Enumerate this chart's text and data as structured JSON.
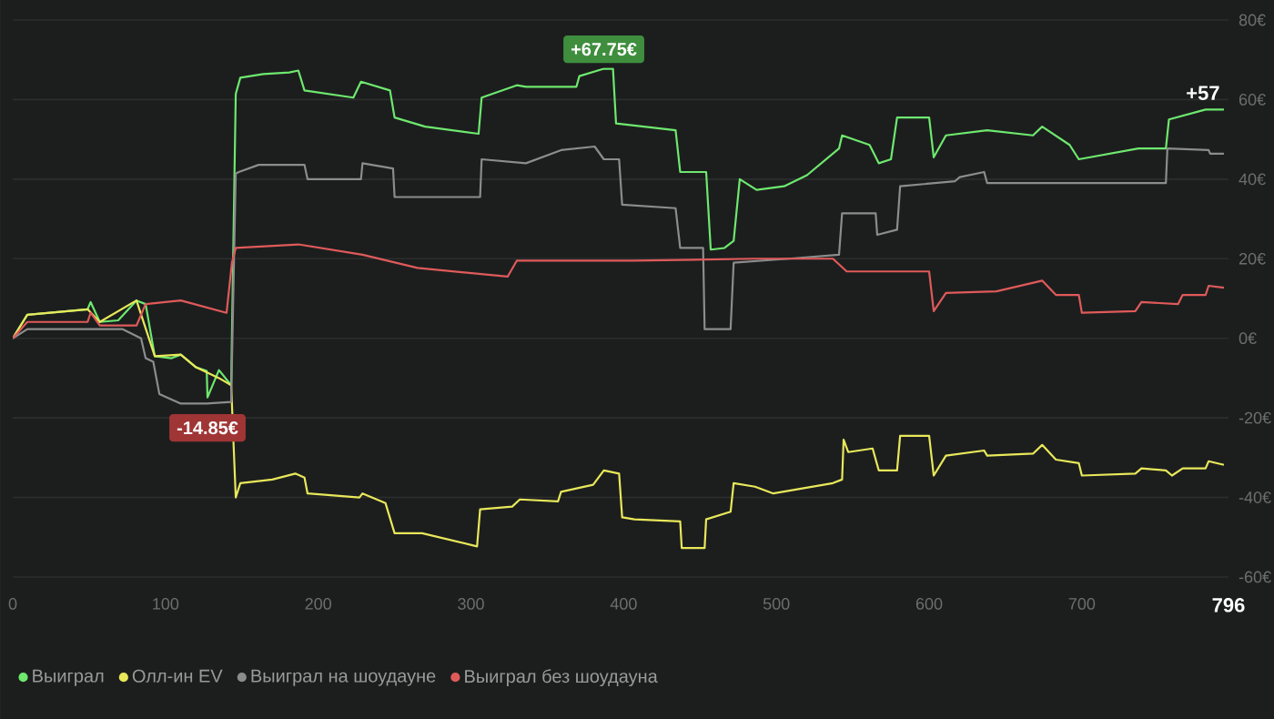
{
  "chart_data": {
    "type": "line",
    "xlim": [
      0,
      796
    ],
    "ylim": [
      -60,
      80
    ],
    "xticks": [
      0,
      100,
      200,
      300,
      400,
      500,
      600,
      700,
      796
    ],
    "yticks": [
      {
        "value": -60,
        "label": "-60€"
      },
      {
        "value": -40,
        "label": "-40€"
      },
      {
        "value": -20,
        "label": "-20€"
      },
      {
        "value": 0,
        "label": "0€"
      },
      {
        "value": 20,
        "label": "20€"
      },
      {
        "value": 40,
        "label": "40€"
      },
      {
        "value": 60,
        "label": "60€"
      },
      {
        "value": 80,
        "label": "80€"
      }
    ],
    "grid": "y",
    "legend": "bottom left",
    "marker": "none",
    "line_style": "solid",
    "series": [
      {
        "name": "Выиграл",
        "color": "#6ee86e",
        "x": [
          0,
          9.5,
          49,
          51,
          57,
          69,
          81,
          87,
          93,
          104,
          110,
          120,
          127,
          127.5,
          135,
          143,
          146,
          149,
          164,
          181,
          187,
          191,
          223,
          228,
          247,
          250,
          270,
          305,
          307,
          330,
          336,
          369,
          371,
          387,
          393,
          395,
          434,
          437,
          454,
          457,
          466,
          472,
          476,
          487,
          505,
          520,
          541,
          543,
          561,
          567,
          575,
          579,
          600,
          603,
          611,
          638,
          668,
          674,
          692,
          698,
          737,
          755,
          757,
          781,
          793
        ],
        "values": [
          0,
          5.9,
          7.3,
          9.1,
          4.1,
          4.5,
          9.5,
          8.6,
          -4.5,
          -5,
          -4.1,
          -7.3,
          -8.2,
          -14.85,
          -8,
          -11.8,
          61.4,
          65.5,
          66.4,
          66.8,
          67.3,
          62.3,
          60.5,
          64.5,
          62.3,
          55.5,
          53.2,
          51.4,
          60.5,
          63.6,
          63.2,
          63.2,
          65.9,
          67.75,
          67.75,
          54,
          52.3,
          41.8,
          41.8,
          22.3,
          22.7,
          24.5,
          40,
          37.3,
          38.2,
          41,
          47.7,
          51,
          48.6,
          44,
          45,
          55.5,
          55.5,
          45.5,
          51,
          52.3,
          51,
          53.2,
          48.6,
          45,
          47.7,
          47.7,
          55,
          57.5,
          57.5
        ]
      },
      {
        "name": "Олл-ин EV",
        "color": "#e8e85a",
        "x": [
          0,
          9.5,
          49,
          57,
          81,
          93,
          110,
          120,
          135,
          143,
          146,
          149,
          170,
          185,
          191,
          193,
          227,
          229,
          244,
          250,
          268,
          304,
          306,
          327,
          332,
          357,
          359,
          380,
          387,
          397,
          399,
          407,
          437,
          438,
          453,
          454,
          470,
          472,
          486,
          498,
          537,
          543,
          544,
          547,
          563,
          567,
          579,
          581,
          600,
          603,
          611,
          636,
          638,
          668,
          674,
          683,
          698,
          700,
          735,
          739,
          755,
          759,
          766,
          781,
          783,
          793
        ],
        "values": [
          0,
          5.9,
          7.3,
          4.1,
          9.5,
          -4.5,
          -4.1,
          -7.3,
          -10,
          -11.8,
          -40,
          -36.4,
          -35.5,
          -34,
          -35,
          -39,
          -40,
          -39,
          -41.4,
          -49,
          -49,
          -52.3,
          -43,
          -42.3,
          -40.5,
          -41,
          -38.6,
          -36.8,
          -33.2,
          -34,
          -45,
          -45.5,
          -46,
          -52.7,
          -52.7,
          -45.5,
          -43.6,
          -36.4,
          -37.3,
          -39,
          -36.4,
          -35.5,
          -25.5,
          -28.6,
          -27.7,
          -33.2,
          -33.2,
          -24.5,
          -24.5,
          -34.5,
          -29.5,
          -28.2,
          -29.5,
          -29,
          -26.8,
          -30.5,
          -31.4,
          -34.5,
          -34,
          -32.7,
          -33.2,
          -34.5,
          -32.7,
          -32.7,
          -30.9,
          -31.8
        ]
      },
      {
        "name": "Выиграл на шоудауне",
        "color": "#8c8c8c",
        "x": [
          0,
          9.5,
          72,
          84,
          87,
          92,
          96,
          110,
          127,
          143,
          146,
          148,
          161,
          191,
          193,
          228,
          229,
          249,
          250,
          306,
          307,
          336,
          359,
          381,
          387,
          397,
          399,
          434,
          437,
          452,
          453,
          470,
          472,
          508,
          541,
          543,
          565,
          566,
          579,
          581,
          617,
          620,
          636,
          638,
          755,
          756,
          783,
          784,
          793
        ],
        "values": [
          0,
          2.3,
          2.3,
          0,
          -5,
          -5.9,
          -14,
          -16.4,
          -16.4,
          -16,
          41.4,
          41.8,
          43.6,
          43.6,
          40,
          40,
          44,
          42.7,
          35.5,
          35.5,
          45,
          44,
          47.3,
          48.2,
          45,
          45,
          33.6,
          32.7,
          22.7,
          22.7,
          2.3,
          2.3,
          19,
          20,
          21,
          31.4,
          31.4,
          26,
          27.3,
          38.2,
          39.5,
          40.5,
          41.8,
          39,
          39,
          47.7,
          47.3,
          46.4,
          46.4
        ]
      },
      {
        "name": "Выиграл без шоудауна",
        "color": "#e05a5a",
        "x": [
          0,
          9.5,
          49,
          51,
          57,
          81,
          87,
          110,
          140,
          143.5,
          146,
          187,
          229,
          265,
          324,
          330,
          371,
          407,
          486,
          537,
          546,
          600,
          603,
          611,
          644,
          674,
          683,
          698,
          700,
          735,
          739,
          763,
          766,
          781,
          783,
          793
        ],
        "values": [
          0,
          4.1,
          4.1,
          6.4,
          3.2,
          3.2,
          8.6,
          9.5,
          6.4,
          19,
          22.7,
          23.6,
          21,
          17.7,
          15.5,
          19.5,
          19.5,
          19.5,
          20,
          20,
          16.8,
          16.8,
          6.8,
          11.4,
          11.8,
          14.5,
          10.9,
          10.9,
          6.4,
          6.8,
          9.1,
          8.6,
          10.9,
          10.9,
          13.2,
          12.7
        ]
      }
    ],
    "annotations": [
      {
        "text": "+67.75€",
        "x": 387,
        "y": 67.75
      },
      {
        "text": "-14.85€",
        "x": 127.5,
        "y": -14.85
      },
      {
        "text": "+57",
        "x": 793,
        "y": 57.5
      }
    ]
  }
}
